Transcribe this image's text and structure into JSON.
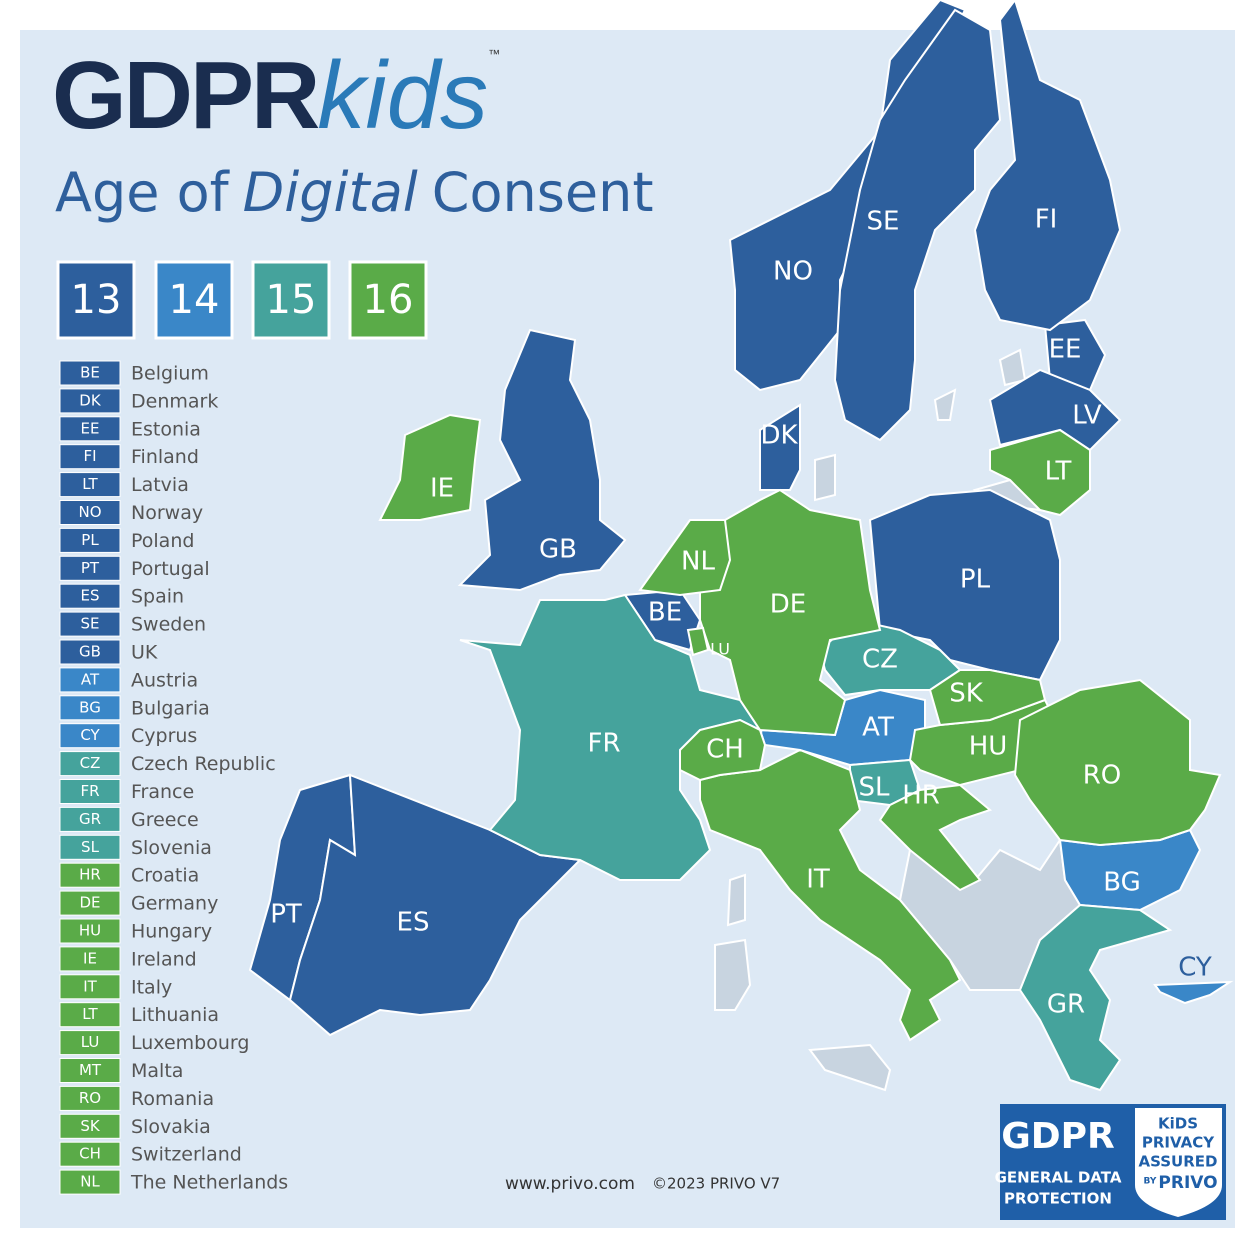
{
  "header": {
    "brand": "GDPR",
    "brand_suffix": "kids",
    "trademark": "™",
    "title": {
      "before": "Age of",
      "emphasis": "Digital",
      "after": "Consent"
    }
  },
  "groups": [
    {
      "age": 13,
      "color": "#2d5f9d",
      "countries": [
        {
          "code": "BE",
          "name": "Belgium"
        },
        {
          "code": "DK",
          "name": "Denmark"
        },
        {
          "code": "EE",
          "name": "Estonia"
        },
        {
          "code": "FI",
          "name": "Finland"
        },
        {
          "code": "LT",
          "name": "Latvia"
        },
        {
          "code": "NO",
          "name": "Norway"
        },
        {
          "code": "PL",
          "name": "Poland"
        },
        {
          "code": "PT",
          "name": "Portugal"
        },
        {
          "code": "ES",
          "name": "Spain"
        },
        {
          "code": "SE",
          "name": "Sweden"
        },
        {
          "code": "GB",
          "name": "UK"
        }
      ]
    },
    {
      "age": 14,
      "color": "#3a87c8",
      "countries": [
        {
          "code": "AT",
          "name": "Austria"
        },
        {
          "code": "BG",
          "name": "Bulgaria"
        },
        {
          "code": "CY",
          "name": "Cyprus"
        }
      ]
    },
    {
      "age": 15,
      "color": "#45a39c",
      "countries": [
        {
          "code": "CZ",
          "name": "Czech Republic"
        },
        {
          "code": "FR",
          "name": "France"
        },
        {
          "code": "GR",
          "name": "Greece"
        },
        {
          "code": "SL",
          "name": "Slovenia"
        }
      ]
    },
    {
      "age": 16,
      "color": "#5aab48",
      "countries": [
        {
          "code": "HR",
          "name": "Croatia"
        },
        {
          "code": "DE",
          "name": "Germany"
        },
        {
          "code": "HU",
          "name": "Hungary"
        },
        {
          "code": "IE",
          "name": "Ireland"
        },
        {
          "code": "IT",
          "name": "Italy"
        },
        {
          "code": "LT",
          "name": "Lithuania"
        },
        {
          "code": "LU",
          "name": "Luxembourg"
        },
        {
          "code": "MT",
          "name": "Malta"
        },
        {
          "code": "RO",
          "name": "Romania"
        },
        {
          "code": "SK",
          "name": "Slovakia"
        },
        {
          "code": "CH",
          "name": "Switzerland"
        },
        {
          "code": "NL",
          "name": "The Netherlands"
        }
      ]
    }
  ],
  "footer": {
    "website": "www.privo.com",
    "copyright": "©2023 PRIVO V7"
  },
  "badge": {
    "title": "GDPR",
    "subtitle_line1": "GENERAL DATA",
    "subtitle_line2": "PROTECTION",
    "seal_line1": "KiDS",
    "seal_line2": "PRIVACY",
    "seal_line3": "ASSURED",
    "seal_by": "BY",
    "seal_brand": "PRIVO"
  }
}
